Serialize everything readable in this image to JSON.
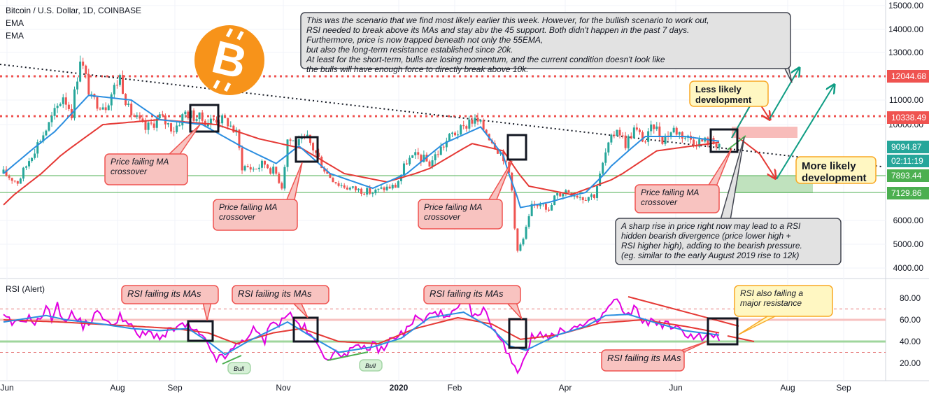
{
  "header": {
    "symbol": "Bitcoin / U.S. Dollar, 1D, COINBASE",
    "ind1": "EMA",
    "ind2": "EMA"
  },
  "rsi_label": "RSI (Alert)",
  "colors": {
    "up": "#26a69a",
    "down": "#ef5350",
    "ema_fast": "#2b8ee0",
    "ema_slow": "#e53935",
    "rsi_line": "#e100e1",
    "red_box": "#f8c3c0",
    "yellow_box": "#fff7c2",
    "gray_box": "#e2e2e2",
    "teal_tag": "#26a69a",
    "red_tag": "#ef5350",
    "green_tag": "#4caf50"
  },
  "chart_data": [
    {
      "type": "candlestick",
      "title": "Bitcoin / U.S. Dollar, 1D, COINBASE",
      "x_ticks": [
        "Jun",
        "Aug",
        "Sep",
        "Nov",
        "2020",
        "Feb",
        "Apr",
        "Jun",
        "Aug",
        "Sep"
      ],
      "y_ticks": [
        "15000.00",
        "14000.00",
        "13000.00",
        "12000.00",
        "11000.00",
        "10000.00",
        "6000.00",
        "5000.00",
        "4000.00"
      ],
      "ylim": [
        3600,
        15100
      ],
      "price_markers": [
        {
          "label": "12044.68",
          "value": 12044.68,
          "color": "#ef5350"
        },
        {
          "label": "10338.49",
          "value": 10338.49,
          "color": "#ef5350"
        },
        {
          "label": "9094.87",
          "value": 9094.87,
          "color": "#26a69a"
        },
        {
          "label": "02:11:19",
          "value": 8720,
          "color": "#26a69a"
        },
        {
          "label": "7893.44",
          "value": 7893.44,
          "color": "#4caf50"
        },
        {
          "label": "7129.86",
          "value": 7129.86,
          "color": "#4caf50"
        }
      ],
      "price_anchors": [
        [
          0,
          8000
        ],
        [
          5,
          7600
        ],
        [
          10,
          8800
        ],
        [
          16,
          10000
        ],
        [
          21,
          11200
        ],
        [
          24,
          10500
        ],
        [
          27,
          12800
        ],
        [
          31,
          11000
        ],
        [
          36,
          10800
        ],
        [
          41,
          12000
        ],
        [
          44,
          10600
        ],
        [
          50,
          9800
        ],
        [
          55,
          10300
        ],
        [
          60,
          9800
        ],
        [
          64,
          10500
        ],
        [
          68,
          10300
        ],
        [
          72,
          10100
        ],
        [
          75,
          10250
        ],
        [
          79,
          10100
        ],
        [
          82,
          9600
        ],
        [
          84,
          8300
        ],
        [
          88,
          8200
        ],
        [
          92,
          8400
        ],
        [
          96,
          8000
        ],
        [
          98,
          7400
        ],
        [
          100,
          9400
        ],
        [
          104,
          9200
        ],
        [
          107,
          9400
        ],
        [
          110,
          8800
        ],
        [
          114,
          8000
        ],
        [
          118,
          7500
        ],
        [
          122,
          7300
        ],
        [
          126,
          7200
        ],
        [
          130,
          7100
        ],
        [
          134,
          7300
        ],
        [
          138,
          7400
        ],
        [
          142,
          8500
        ],
        [
          146,
          8700
        ],
        [
          150,
          8400
        ],
        [
          154,
          9000
        ],
        [
          158,
          9600
        ],
        [
          162,
          9800
        ],
        [
          164,
          10200
        ],
        [
          167,
          10100
        ],
        [
          170,
          9700
        ],
        [
          174,
          9000
        ],
        [
          176,
          8700
        ],
        [
          177,
          8300
        ],
        [
          178,
          8000
        ],
        [
          179,
          7200
        ],
        [
          180,
          5800
        ],
        [
          181,
          4700
        ],
        [
          183,
          5200
        ],
        [
          186,
          6500
        ],
        [
          190,
          6800
        ],
        [
          192,
          6300
        ],
        [
          194,
          6900
        ],
        [
          198,
          7200
        ],
        [
          204,
          6900
        ],
        [
          208,
          7000
        ],
        [
          212,
          8800
        ],
        [
          216,
          9900
        ],
        [
          219,
          9200
        ],
        [
          222,
          9800
        ],
        [
          226,
          9300
        ],
        [
          229,
          10000
        ],
        [
          232,
          9400
        ],
        [
          236,
          9800
        ],
        [
          240,
          9500
        ],
        [
          244,
          9300
        ],
        [
          248,
          9300
        ],
        [
          252,
          9200
        ]
      ],
      "ema_fast_anchors": [
        [
          0,
          8000
        ],
        [
          18,
          9700
        ],
        [
          30,
          11200
        ],
        [
          45,
          11000
        ],
        [
          55,
          10200
        ],
        [
          70,
          10000
        ],
        [
          85,
          9000
        ],
        [
          96,
          8400
        ],
        [
          104,
          9100
        ],
        [
          115,
          8000
        ],
        [
          130,
          7300
        ],
        [
          142,
          8000
        ],
        [
          155,
          9200
        ],
        [
          168,
          9900
        ],
        [
          176,
          8700
        ],
        [
          182,
          6500
        ],
        [
          192,
          6700
        ],
        [
          205,
          7100
        ],
        [
          214,
          8300
        ],
        [
          226,
          9500
        ],
        [
          240,
          9500
        ],
        [
          252,
          9300
        ]
      ],
      "ema_slow_anchors": [
        [
          0,
          6600
        ],
        [
          20,
          8700
        ],
        [
          35,
          10000
        ],
        [
          55,
          10200
        ],
        [
          75,
          10000
        ],
        [
          90,
          9400
        ],
        [
          105,
          9000
        ],
        [
          120,
          8000
        ],
        [
          135,
          7600
        ],
        [
          150,
          8200
        ],
        [
          165,
          9200
        ],
        [
          176,
          8900
        ],
        [
          185,
          7400
        ],
        [
          200,
          7000
        ],
        [
          214,
          7700
        ],
        [
          230,
          8900
        ],
        [
          252,
          9250
        ]
      ],
      "annotations": [
        {
          "text": "This was the scenario that we find most likely earlier this week. However, for the bullish scenario to work out, RSI needed to break above its MAs and stay abv the 45 support. Both didn't happen in the past 7 days. Furthermore, price is now trapped beneath not only the 55EMA, but also the long-term resistance established since 20k. At least for the short-term, bulls are losing momentum, and the current condition doesn't look like the bulls will have enough force to directly break above 10k.",
          "style": "gray"
        },
        {
          "text": "Price failing MA crossover",
          "style": "red"
        },
        {
          "text": "Price failing MA crossover",
          "style": "red"
        },
        {
          "text": "Price failing MA crossover",
          "style": "red"
        },
        {
          "text": "Price failing MA crossover",
          "style": "red"
        },
        {
          "text": "Less likely development",
          "style": "yellow"
        },
        {
          "text": "More likely development",
          "style": "yellow"
        },
        {
          "text": "A sharp rise in price right now may lead to a RSI hidden bearish divergence (price lower high + RSI higher high), adding to the bearish pressure. (eg. similar to the early August 2019 rise to 12k)",
          "style": "gray"
        }
      ]
    },
    {
      "type": "line",
      "title": "RSI (Alert)",
      "y_ticks": [
        "80.00",
        "60.00",
        "40.00",
        "20.00"
      ],
      "ylim": [
        10,
        95
      ],
      "levels": [
        70,
        60,
        40,
        30
      ],
      "rsi_anchors": [
        [
          0,
          62
        ],
        [
          4,
          55
        ],
        [
          8,
          62
        ],
        [
          12,
          58
        ],
        [
          15,
          70
        ],
        [
          17,
          62
        ],
        [
          19,
          78
        ],
        [
          20,
          60
        ],
        [
          24,
          65
        ],
        [
          28,
          55
        ],
        [
          31,
          60
        ],
        [
          34,
          68
        ],
        [
          38,
          52
        ],
        [
          41,
          66
        ],
        [
          44,
          55
        ],
        [
          48,
          45
        ],
        [
          52,
          48
        ],
        [
          56,
          44
        ],
        [
          60,
          52
        ],
        [
          64,
          55
        ],
        [
          67,
          50
        ],
        [
          70,
          43
        ],
        [
          73,
          32
        ],
        [
          75,
          25
        ],
        [
          77,
          24
        ],
        [
          80,
          30
        ],
        [
          84,
          41
        ],
        [
          88,
          50
        ],
        [
          92,
          41
        ],
        [
          95,
          62
        ],
        [
          97,
          55
        ],
        [
          100,
          67
        ],
        [
          103,
          58
        ],
        [
          106,
          52
        ],
        [
          110,
          38
        ],
        [
          114,
          26
        ],
        [
          118,
          28
        ],
        [
          122,
          32
        ],
        [
          126,
          33
        ],
        [
          130,
          36
        ],
        [
          134,
          32
        ],
        [
          137,
          45
        ],
        [
          141,
          47
        ],
        [
          145,
          62
        ],
        [
          148,
          58
        ],
        [
          152,
          70
        ],
        [
          156,
          60
        ],
        [
          160,
          70
        ],
        [
          163,
          76
        ],
        [
          166,
          62
        ],
        [
          169,
          68
        ],
        [
          172,
          56
        ],
        [
          175,
          40
        ],
        [
          178,
          30
        ],
        [
          179,
          22
        ],
        [
          181,
          12
        ],
        [
          183,
          24
        ],
        [
          186,
          43
        ],
        [
          190,
          48
        ],
        [
          194,
          44
        ],
        [
          198,
          52
        ],
        [
          202,
          53
        ],
        [
          206,
          56
        ],
        [
          210,
          60
        ],
        [
          213,
          72
        ],
        [
          216,
          79
        ],
        [
          219,
          62
        ],
        [
          222,
          70
        ],
        [
          226,
          58
        ],
        [
          230,
          58
        ],
        [
          234,
          55
        ],
        [
          238,
          50
        ],
        [
          242,
          46
        ],
        [
          246,
          44
        ],
        [
          249,
          45
        ],
        [
          252,
          44
        ]
      ],
      "rsi_fast_anchors": [
        [
          0,
          58
        ],
        [
          15,
          64
        ],
        [
          22,
          60
        ],
        [
          35,
          56
        ],
        [
          45,
          52
        ],
        [
          55,
          50
        ],
        [
          65,
          52
        ],
        [
          72,
          40
        ],
        [
          78,
          28
        ],
        [
          86,
          40
        ],
        [
          100,
          58
        ],
        [
          110,
          42
        ],
        [
          118,
          30
        ],
        [
          130,
          35
        ],
        [
          140,
          43
        ],
        [
          150,
          62
        ],
        [
          162,
          67
        ],
        [
          172,
          52
        ],
        [
          178,
          36
        ],
        [
          184,
          32
        ],
        [
          195,
          46
        ],
        [
          205,
          54
        ],
        [
          212,
          64
        ],
        [
          220,
          65
        ],
        [
          230,
          57
        ],
        [
          240,
          50
        ],
        [
          252,
          46
        ]
      ],
      "rsi_slow_anchors": [
        [
          0,
          60
        ],
        [
          20,
          58
        ],
        [
          40,
          55
        ],
        [
          60,
          52
        ],
        [
          72,
          48
        ],
        [
          82,
          38
        ],
        [
          95,
          48
        ],
        [
          105,
          52
        ],
        [
          118,
          40
        ],
        [
          132,
          38
        ],
        [
          145,
          52
        ],
        [
          160,
          62
        ],
        [
          172,
          56
        ],
        [
          182,
          42
        ],
        [
          195,
          46
        ],
        [
          210,
          57
        ],
        [
          225,
          60
        ],
        [
          240,
          54
        ],
        [
          252,
          48
        ]
      ],
      "annotations": [
        {
          "text": "RSI failing its MAs",
          "style": "red"
        },
        {
          "text": "RSI failing its MAs",
          "style": "red"
        },
        {
          "text": "RSI failing its MAs",
          "style": "red"
        },
        {
          "text": "RSI failing its MAs",
          "style": "red"
        },
        {
          "text": "RSI also failing a major resistance",
          "style": "yellow"
        },
        {
          "text": "Bull",
          "style": "green"
        },
        {
          "text": "Bull",
          "style": "green"
        }
      ],
      "rsi_y_tick_values": [
        80,
        60,
        40,
        20
      ]
    }
  ]
}
